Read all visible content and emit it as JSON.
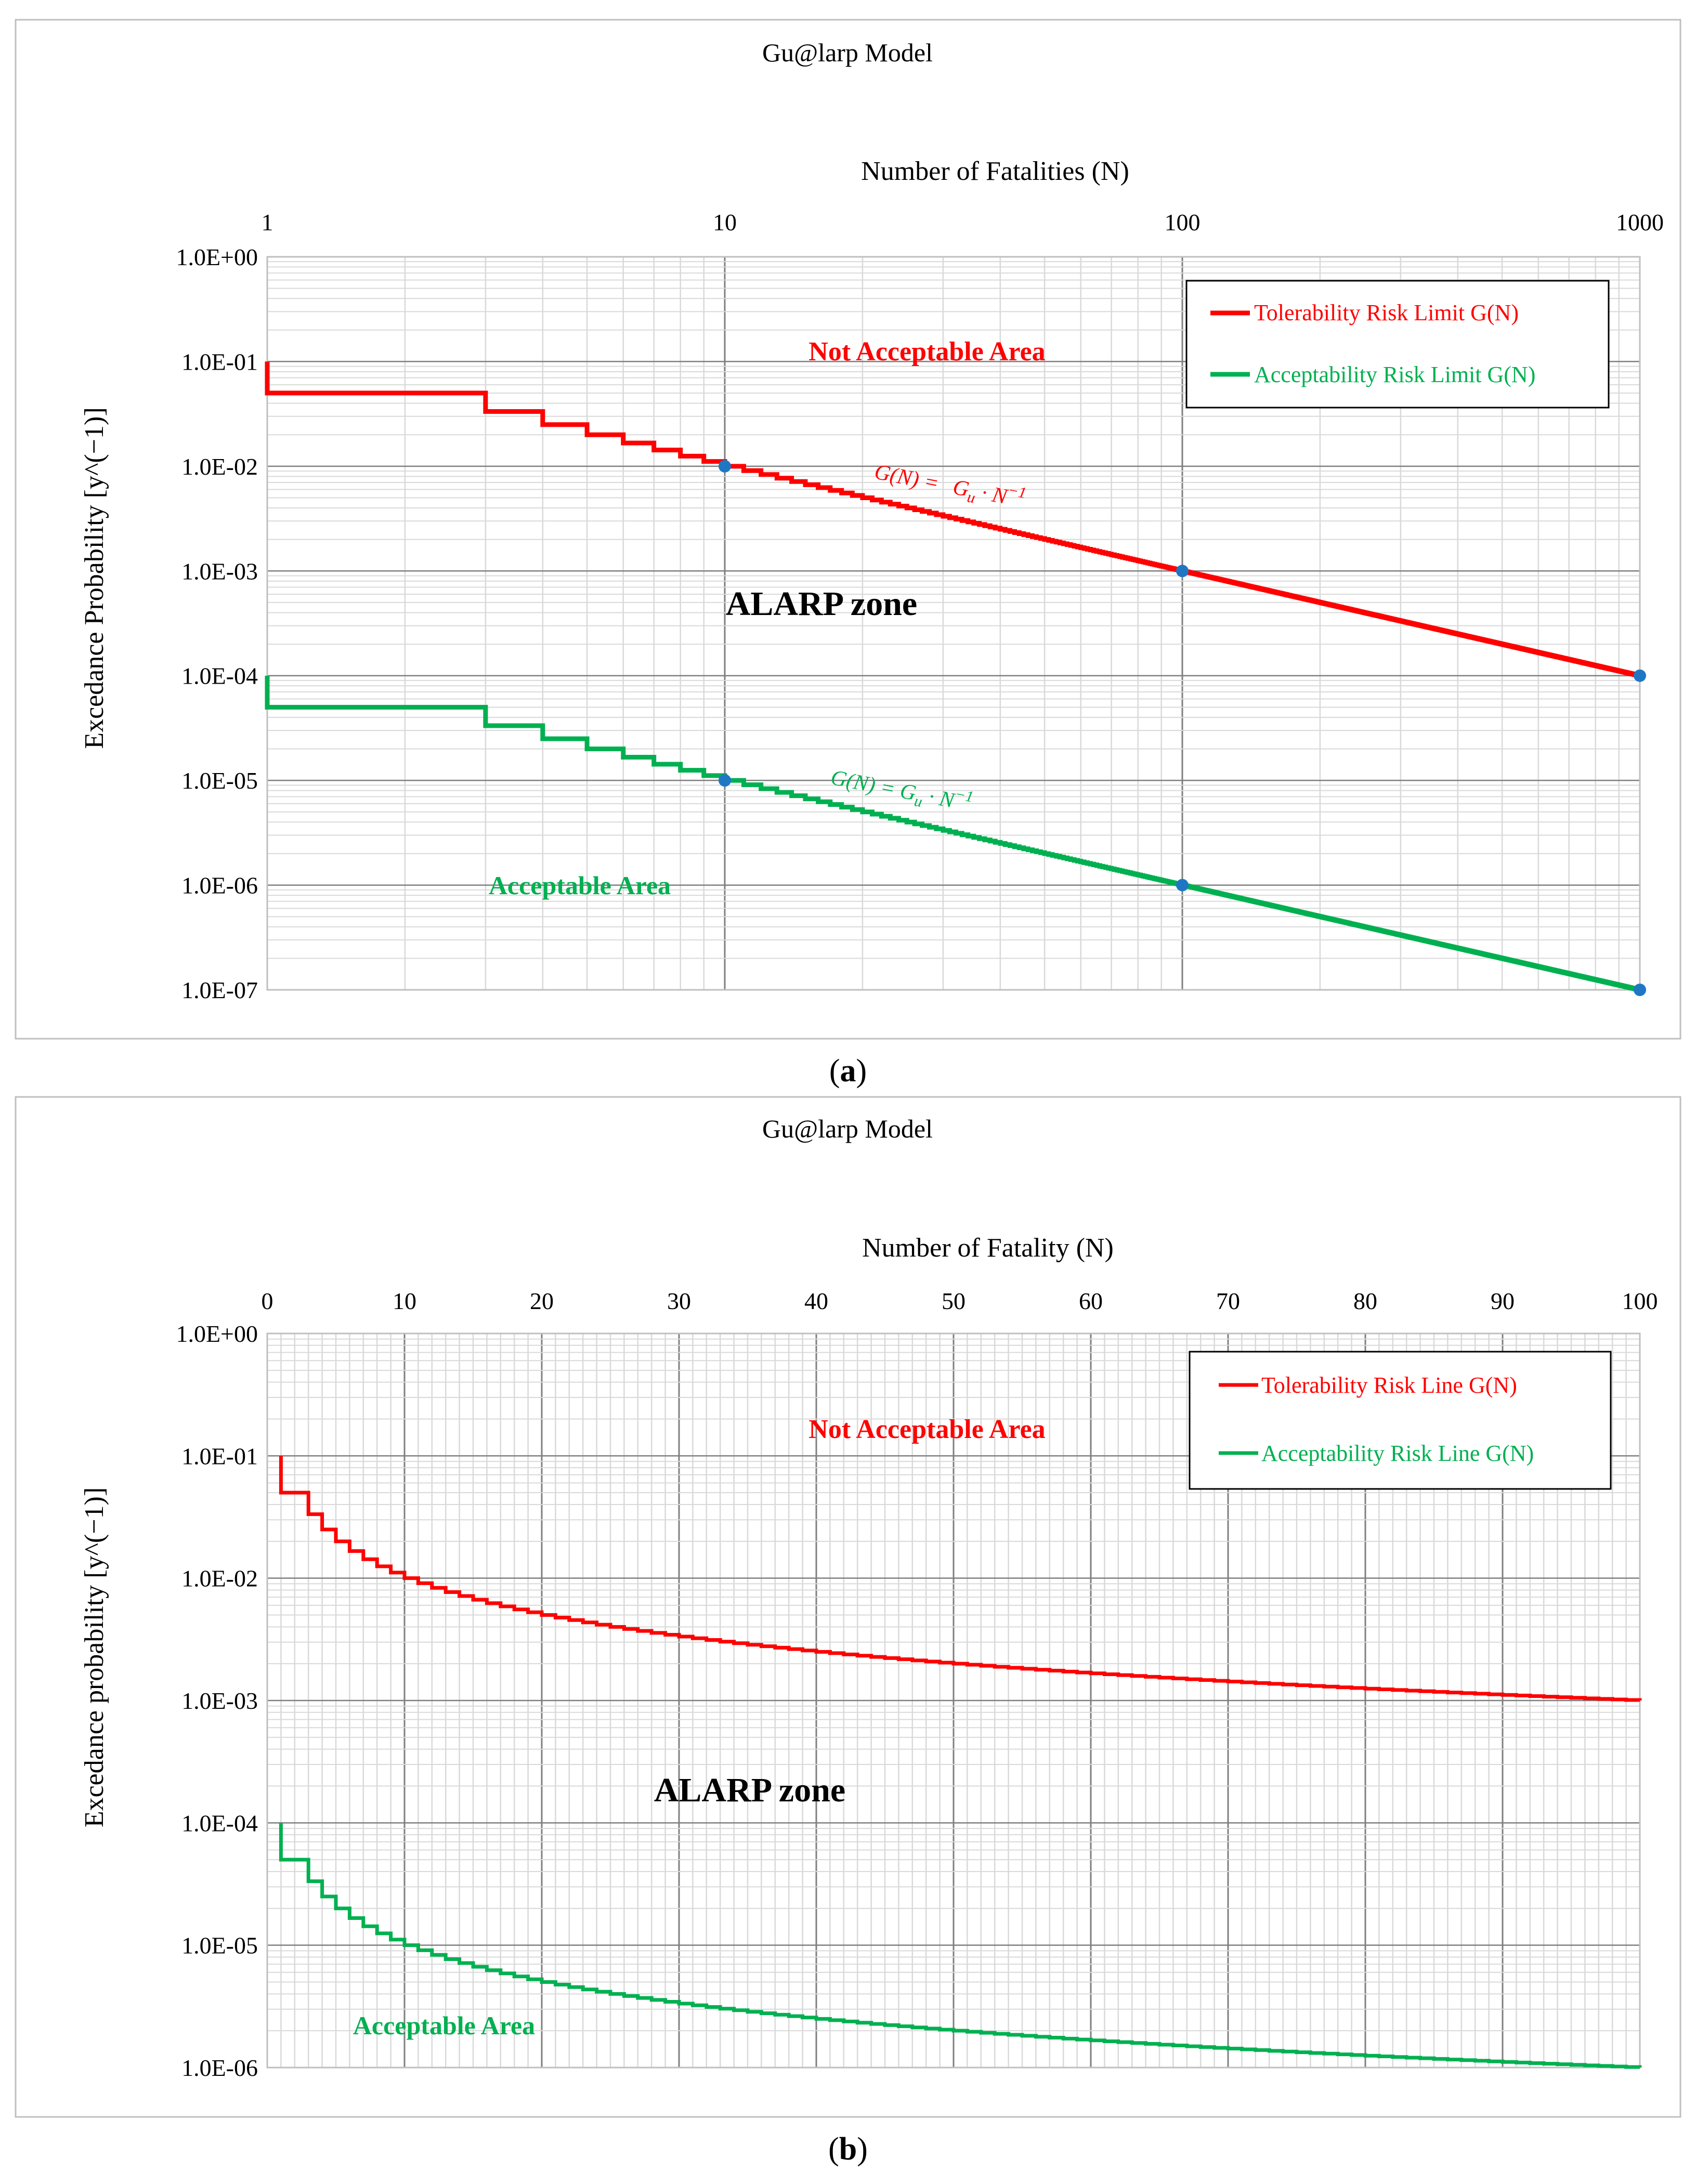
{
  "colors": {
    "red": "#ff0000",
    "green": "#00b050",
    "marker": "#1f77c4",
    "grid_major": "#7f7f7f",
    "grid_minor": "#d9d9d9",
    "frame": "#bfbfbf"
  },
  "chart_data": [
    {
      "panel": "(a)",
      "panel_letter": "a",
      "type": "line",
      "title": "Gu@larp Model",
      "xlabel": "Number of Fatalities (N)",
      "ylabel": "Excedance Probability [y^(−1)]",
      "x_scale": "log",
      "xlim": [
        1,
        1000
      ],
      "x_ticks": [
        "1",
        "10",
        "100",
        "1000"
      ],
      "y_scale": "log",
      "ylim": [
        1e-07,
        1
      ],
      "y_ticks": [
        "1.0E+00",
        "1.0E-01",
        "1.0E-02",
        "1.0E-03",
        "1.0E-04",
        "1.0E-05",
        "1.0E-06",
        "1.0E-07"
      ],
      "series": [
        {
          "name": "Tolerability Risk Limit G(N)",
          "color": "#ff0000",
          "formula": "G_u / N",
          "Gu": 0.1,
          "steps": "integer N from 1 to 1000"
        },
        {
          "name": "Acceptability Risk Limit G(N)",
          "color": "#00b050",
          "formula": "G_u / N",
          "Gu": 0.0001,
          "steps": "integer N from 1 to 1000"
        }
      ],
      "markers": [
        {
          "x": 10,
          "y": 0.01
        },
        {
          "x": 100,
          "y": 0.001
        },
        {
          "x": 1000,
          "y": 0.0001
        },
        {
          "x": 10,
          "y": 1e-05
        },
        {
          "x": 100,
          "y": 1e-06
        },
        {
          "x": 1000,
          "y": 1e-07
        }
      ],
      "annotations": {
        "not_acceptable": "Not Acceptable Area",
        "alarp": "ALARP zone",
        "acceptable": "Acceptable Area",
        "formula_red": {
          "lhs": "G(N) = ",
          "g": "G",
          "sub": "u",
          "dot": " · N",
          "sup": "−1"
        },
        "formula_green": {
          "lhs": "G(N) = ",
          "g": "G",
          "sub": "u",
          "dot": " · N",
          "sup": "−1"
        }
      },
      "legend": [
        "Tolerability Risk Limit G(N)",
        "Acceptability Risk Limit G(N)"
      ],
      "legend_position": "top-right"
    },
    {
      "panel": "(b)",
      "panel_letter": "b",
      "type": "line",
      "title": "Gu@larp Model",
      "xlabel": "Number of Fatality (N)",
      "ylabel": "Excedance probability [y^(−1)]",
      "x_scale": "linear",
      "xlim": [
        0,
        100
      ],
      "x_ticks": [
        "0",
        "10",
        "20",
        "30",
        "40",
        "50",
        "60",
        "70",
        "80",
        "90",
        "100"
      ],
      "y_scale": "log",
      "ylim": [
        1e-06,
        1
      ],
      "y_ticks": [
        "1.0E+00",
        "1.0E-01",
        "1.0E-02",
        "1.0E-03",
        "1.0E-04",
        "1.0E-05",
        "1.0E-06"
      ],
      "series": [
        {
          "name": "Tolerability Risk Line G(N)",
          "color": "#ff0000",
          "formula": "G_u / N",
          "Gu": 0.1,
          "steps": "integer N from 1 to 100"
        },
        {
          "name": "Acceptability Risk Line G(N)",
          "color": "#00b050",
          "formula": "G_u / N",
          "Gu": 0.0001,
          "steps": "integer N from 1 to 100"
        }
      ],
      "annotations": {
        "not_acceptable": "Not Acceptable Area",
        "alarp": "ALARP zone",
        "acceptable": "Acceptable Area"
      },
      "legend": [
        "Tolerability Risk Line G(N)",
        "Acceptability Risk Line G(N)"
      ],
      "legend_position": "top-right"
    }
  ]
}
